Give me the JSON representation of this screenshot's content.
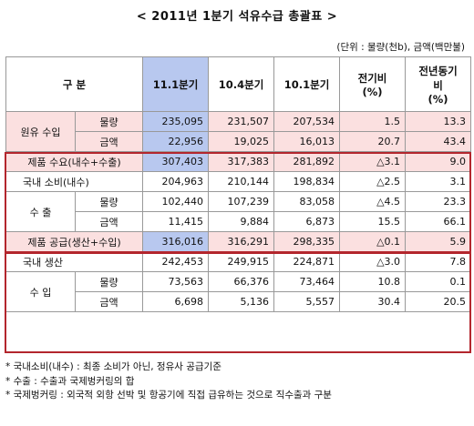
{
  "title": "< 2011년 1분기 석유수급 총괄표 >",
  "unit": "(단위 : 물량(천b), 금액(백만불)",
  "header": {
    "category": "구 분",
    "cols": [
      "11.1분기",
      "10.4분기",
      "10.1분기",
      "전기비\n(%)",
      "전년동기\n비\n(%)"
    ]
  },
  "crude": {
    "label": "원유 수입",
    "volume": {
      "label": "물량",
      "values": [
        "235,095",
        "231,507",
        "207,534",
        "1.5",
        "13.3"
      ]
    },
    "amount": {
      "label": "금액",
      "values": [
        "22,956",
        "19,025",
        "16,013",
        "20.7",
        "43.4"
      ]
    }
  },
  "demand": {
    "label": "제품 수요(내수+수출)",
    "values": [
      "307,403",
      "317,383",
      "281,892",
      "△3.1",
      "9.0"
    ],
    "domestic": {
      "label": "국내 소비(내수)",
      "values": [
        "204,963",
        "210,144",
        "198,834",
        "△2.5",
        "3.1"
      ]
    },
    "export": {
      "label": "수 출",
      "volume": {
        "label": "물량",
        "values": [
          "102,440",
          "107,239",
          "83,058",
          "△4.5",
          "23.3"
        ]
      },
      "amount": {
        "label": "금액",
        "values": [
          "11,415",
          "9,884",
          "6,873",
          "15.5",
          "66.1"
        ]
      }
    }
  },
  "supply": {
    "label": "제품 공급(생산+수입)",
    "values": [
      "316,016",
      "316,291",
      "298,335",
      "△0.1",
      "5.9"
    ],
    "production": {
      "label": "국내 생산",
      "values": [
        "242,453",
        "249,915",
        "224,871",
        "△3.0",
        "7.8"
      ]
    },
    "import": {
      "label": "수 입",
      "volume": {
        "label": "물량",
        "values": [
          "73,563",
          "66,376",
          "73,464",
          "10.8",
          "0.1"
        ]
      },
      "amount": {
        "label": "금액",
        "values": [
          "6,698",
          "5,136",
          "5,557",
          "30.4",
          "20.5"
        ]
      }
    }
  },
  "notes": [
    "* 국내소비(내수) : 최종 소비가 아닌, 정유사 공급기준",
    "* 수출 : 수출과 국제벙커링의 합",
    "* 국제벙커링 : 외국적 외항 선박 및 항공기에 직접 급유하는 것으로 직수출과 구분"
  ],
  "colors": {
    "highlight": "#b8c8ef",
    "pink": "#fbe0e0",
    "frame": "#b3262d"
  }
}
